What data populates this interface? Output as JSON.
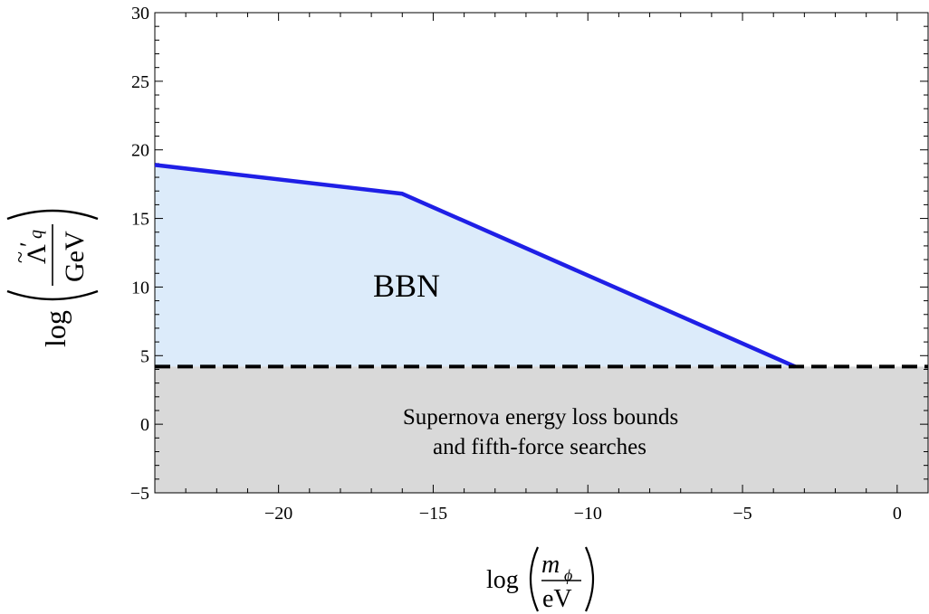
{
  "chart_data": {
    "type": "area",
    "title": "",
    "xlabel": "log(m_φ / eV)",
    "ylabel": "log(Λ̃′_q / GeV)",
    "xlim": [
      -24,
      1
    ],
    "ylim": [
      -5,
      30
    ],
    "x_ticks": [
      -20,
      -15,
      -10,
      -5,
      0
    ],
    "x_tick_labels": [
      "−20",
      "−15",
      "−10",
      "−5",
      "0"
    ],
    "y_ticks": [
      -5,
      0,
      5,
      10,
      15,
      20,
      25,
      30
    ],
    "y_tick_labels": [
      "−5",
      "0",
      "5",
      "10",
      "15",
      "20",
      "25",
      "30"
    ],
    "series": [
      {
        "name": "BBN bound",
        "color": "#1f1fe6",
        "fill": "#dcebfa",
        "x": [
          -24,
          -16,
          -3.3
        ],
        "y": [
          18.9,
          16.8,
          4.2
        ]
      },
      {
        "name": "Supernova / fifth-force bound",
        "style": "dashed",
        "color": "#000000",
        "fill": "#d9d9d9",
        "x": [
          -24,
          1
        ],
        "y": [
          4.2,
          4.2
        ]
      }
    ],
    "annotations": {
      "bbn": "BBN",
      "supernova_line1": "Supernova energy loss bounds",
      "supernova_line2": "and fifth-force searches"
    },
    "axis_text": {
      "log": "log",
      "x_num": "m",
      "x_num_sub": "ϕ",
      "x_den": "eV",
      "y_num": "Λ",
      "y_num_tilde": "~",
      "y_num_prime": "′",
      "y_num_sub": "q",
      "y_den": "GeV"
    }
  }
}
